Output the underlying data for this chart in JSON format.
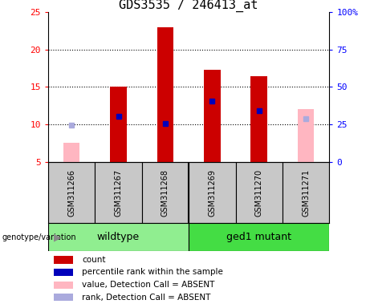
{
  "title": "GDS3535 / 246413_at",
  "samples": [
    "GSM311266",
    "GSM311267",
    "GSM311268",
    "GSM311269",
    "GSM311270",
    "GSM311271"
  ],
  "count_values": [
    null,
    15.0,
    23.0,
    17.3,
    16.5,
    null
  ],
  "percentile_values": [
    null,
    11.1,
    10.1,
    13.1,
    11.8,
    null
  ],
  "absent_value": [
    7.5,
    null,
    null,
    null,
    null,
    12.0
  ],
  "absent_rank": [
    9.9,
    null,
    null,
    null,
    null,
    10.8
  ],
  "bar_bottom": 5,
  "ylim_left": [
    5,
    25
  ],
  "ylim_right": [
    0,
    100
  ],
  "yticks_left": [
    5,
    10,
    15,
    20,
    25
  ],
  "yticks_right": [
    0,
    25,
    50,
    75,
    100
  ],
  "ytick_labels_left": [
    "5",
    "10",
    "15",
    "20",
    "25"
  ],
  "ytick_labels_right": [
    "0",
    "25",
    "50",
    "75",
    "100%"
  ],
  "hgrid_values": [
    10,
    15,
    20
  ],
  "bar_width": 0.35,
  "count_color": "#CC0000",
  "percentile_color": "#0000BB",
  "absent_value_color": "#FFB6C1",
  "absent_rank_color": "#AAAADD",
  "sample_bg_color": "#C8C8C8",
  "wildtype_color": "#90EE90",
  "ged1_color": "#44DD44",
  "title_fontsize": 11,
  "axis_fontsize": 8,
  "sample_fontsize": 7,
  "group_fontsize": 9,
  "legend_fontsize": 7.5,
  "legend_items": [
    {
      "color": "#CC0000",
      "label": "count"
    },
    {
      "color": "#0000BB",
      "label": "percentile rank within the sample"
    },
    {
      "color": "#FFB6C1",
      "label": "value, Detection Call = ABSENT"
    },
    {
      "color": "#AAAADD",
      "label": "rank, Detection Call = ABSENT"
    }
  ]
}
